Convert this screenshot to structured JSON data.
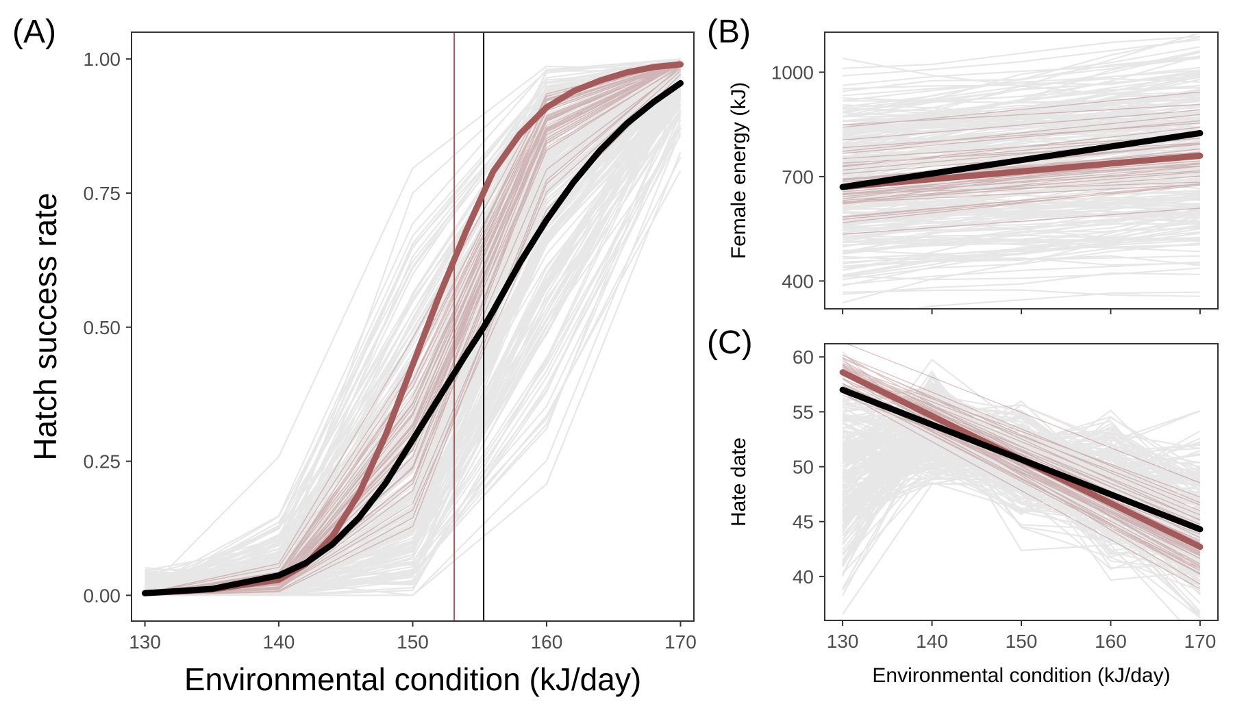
{
  "colors": {
    "grey": "#d4d4d4",
    "red": "#a55a5a",
    "black": "#000000"
  },
  "chart_data": [
    {
      "id": "A",
      "type": "line",
      "panel_label": "(A)",
      "xlabel": "Environmental condition (kJ/day)",
      "ylabel": "Hatch success rate",
      "x_ticks": [
        130,
        140,
        150,
        160,
        170
      ],
      "x_tick_labels": [
        "130",
        "140",
        "150",
        "160",
        "170"
      ],
      "y_ticks": [
        0,
        0.25,
        0.5,
        0.75,
        1
      ],
      "y_tick_labels": [
        "0.00",
        "0.25",
        "0.50",
        "0.75",
        "1.00"
      ],
      "xlim": [
        129,
        171
      ],
      "ylim": [
        -0.048,
        1.05
      ],
      "grid": false,
      "series": [
        {
          "role": "mean-red",
          "color": "#a55a5a",
          "x": [
            130,
            135,
            140,
            142,
            144,
            146,
            148,
            150,
            152,
            154,
            156,
            158,
            160,
            162,
            164,
            166,
            168,
            170
          ],
          "y": [
            0.004,
            0.011,
            0.029,
            0.058,
            0.11,
            0.19,
            0.3,
            0.43,
            0.56,
            0.68,
            0.79,
            0.86,
            0.91,
            0.94,
            0.96,
            0.975,
            0.985,
            0.99
          ]
        },
        {
          "role": "mean-black",
          "color": "#000000",
          "x": [
            130,
            135,
            140,
            142,
            144,
            146,
            148,
            150,
            152,
            154,
            155.3,
            156,
            158,
            160,
            162,
            164,
            166,
            168,
            170
          ],
          "y": [
            0.004,
            0.012,
            0.037,
            0.06,
            0.095,
            0.145,
            0.21,
            0.29,
            0.37,
            0.45,
            0.5,
            0.53,
            0.62,
            0.7,
            0.77,
            0.83,
            0.88,
            0.92,
            0.955
          ]
        }
      ],
      "vlines": [
        {
          "x": 153.1,
          "color": "#a55a5a"
        },
        {
          "x": 155.3,
          "color": "#000000"
        }
      ]
    },
    {
      "id": "B",
      "type": "line",
      "panel_label": "(B)",
      "xlabel": "",
      "ylabel": "Female energy (kJ)",
      "x_ticks": [
        130,
        140,
        150,
        160,
        170
      ],
      "x_tick_labels": [],
      "y_ticks": [
        400,
        700,
        1000
      ],
      "y_tick_labels": [
        "400",
        "700",
        "1000"
      ],
      "xlim": [
        128,
        172
      ],
      "ylim": [
        320,
        1115
      ],
      "grid": false,
      "series": [
        {
          "role": "mean-red",
          "color": "#a55a5a",
          "x": [
            130,
            170
          ],
          "y": [
            670,
            760
          ]
        },
        {
          "role": "mean-black",
          "color": "#000000",
          "x": [
            130,
            170
          ],
          "y": [
            670,
            825
          ]
        }
      ]
    },
    {
      "id": "C",
      "type": "line",
      "panel_label": "(C)",
      "xlabel": "Environmental condition (kJ/day)",
      "ylabel": "Hate date",
      "x_ticks": [
        130,
        140,
        150,
        160,
        170
      ],
      "x_tick_labels": [
        "130",
        "140",
        "150",
        "160",
        "170"
      ],
      "y_ticks": [
        40,
        45,
        50,
        55,
        60
      ],
      "y_tick_labels": [
        "40",
        "45",
        "50",
        "55",
        "60"
      ],
      "xlim": [
        128,
        172
      ],
      "ylim": [
        36,
        61.2
      ],
      "grid": false,
      "series": [
        {
          "role": "mean-red",
          "color": "#a55a5a",
          "x": [
            130,
            170
          ],
          "y": [
            58.6,
            42.7
          ]
        },
        {
          "role": "mean-black",
          "color": "#000000",
          "x": [
            130,
            170
          ],
          "y": [
            57.0,
            44.3
          ]
        }
      ]
    }
  ]
}
